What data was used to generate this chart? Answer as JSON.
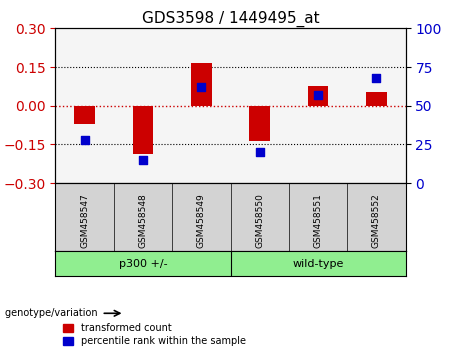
{
  "title": "GDS3598 / 1449495_at",
  "samples": [
    "GSM458547",
    "GSM458548",
    "GSM458549",
    "GSM458550",
    "GSM458551",
    "GSM458552"
  ],
  "transformed_counts": [
    -0.07,
    -0.185,
    0.165,
    -0.135,
    0.075,
    0.055
  ],
  "percentile_ranks": [
    28,
    15,
    62,
    20,
    57,
    68
  ],
  "groups": [
    {
      "label": "p300 +/-",
      "indices": [
        0,
        1,
        2
      ],
      "color": "#90EE90"
    },
    {
      "label": "wild-type",
      "indices": [
        3,
        4,
        5
      ],
      "color": "#90EE90"
    }
  ],
  "ylim_left": [
    -0.3,
    0.3
  ],
  "ylim_right": [
    0,
    100
  ],
  "yticks_left": [
    -0.3,
    -0.15,
    0,
    0.15,
    0.3
  ],
  "yticks_right": [
    0,
    25,
    50,
    75,
    100
  ],
  "bar_color": "#CC0000",
  "scatter_color": "#0000CC",
  "hline_color": "#CC0000",
  "grid_color": "black",
  "bg_color": "#ffffff",
  "plot_bg": "#ffffff",
  "label_tc": "transformed count",
  "label_pr": "percentile rank within the sample",
  "genotype_label": "genotype/variation"
}
